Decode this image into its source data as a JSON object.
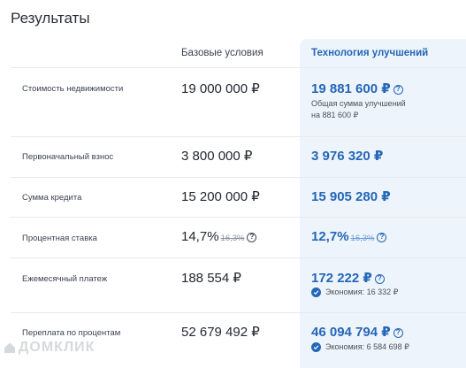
{
  "title": "Результаты",
  "headers": {
    "base": "Базовые условия",
    "tech": "Технология улучшений"
  },
  "rows": [
    {
      "label": "Стоимость недвижимости",
      "base": "19 000 000 ₽",
      "tech": "19 881 600 ₽",
      "note_line1": "Общая сумма улучшений",
      "note_line2": "на 881 600 ₽"
    },
    {
      "label": "Первоначальный взнос",
      "base": "3 800 000 ₽",
      "tech": "3 976 320 ₽"
    },
    {
      "label": "Сумма кредита",
      "base": "15 200 000 ₽",
      "tech": "15 905 280 ₽"
    },
    {
      "label": "Процентная ставка",
      "base": "14,7%",
      "base_old": "16,3%",
      "tech": "12,7%",
      "tech_old": "16,3%"
    },
    {
      "label": "Ежемесячный платеж",
      "base": "188 554 ₽",
      "tech": "172 222 ₽",
      "saving": "Экономия: 16 332 ₽"
    },
    {
      "label": "Переплата по процентам",
      "base": "52 679 492 ₽",
      "tech": "46 094 794 ₽",
      "saving": "Экономия: 6 584 698 ₽"
    }
  ],
  "icons": {
    "info": "question-circle-icon",
    "check": "check-circle-icon"
  },
  "watermark": "ДОМКЛИК",
  "colors": {
    "accent": "#2466b8",
    "tech_bg": "#eef4fb"
  }
}
